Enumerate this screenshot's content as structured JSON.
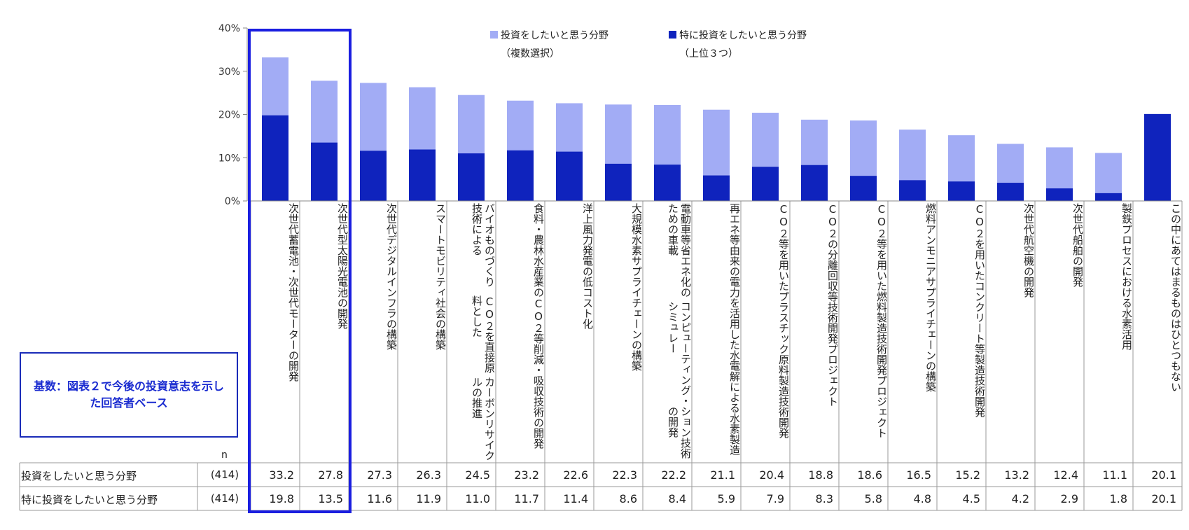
{
  "chart_data": {
    "type": "bar",
    "categories": [
      [
        "次世代蓄電池・",
        "次世代モーターの開発"
      ],
      [
        "次世代型太陽光電池の開発"
      ],
      [
        "次世代デジタルインフラの構築"
      ],
      [
        "スマートモビリティ社会の構築"
      ],
      [
        "バイオものづくり技術による",
        "CO２を直接原料とした",
        "カーボンリサイクルの推進"
      ],
      [
        "食料・農林水産業の",
        "CO２等削減・吸収技術の開発"
      ],
      [
        "洋上風力発電の低コスト化"
      ],
      [
        "大規模水素サプライチェーンの",
        "構築"
      ],
      [
        "電動車等省エネ化のための車載",
        "コンピューティング・シミュレー",
        "ション技術の開発"
      ],
      [
        "再エネ等由来の電力を活用した",
        "水電解による水素製造"
      ],
      [
        "CO２等を用いた",
        "プラスチック原料製造技術開発"
      ],
      [
        "CO２の分離回収等",
        "技術開発プロジェクト"
      ],
      [
        "CO２等を用いた",
        "燃料製造技術開発プロジェクト"
      ],
      [
        "燃料アンモニアサプライチェーンの",
        "構築"
      ],
      [
        "CO２を用いた",
        "コンクリート等製造技術開発"
      ],
      [
        "次世代航空機の開発"
      ],
      [
        "次世代船舶の開発"
      ],
      [
        "製鉄プロセスにおける水素活用"
      ],
      [
        "この中にあてはまるものは",
        "ひとつもない"
      ]
    ],
    "series": [
      {
        "name": "投資をしたいと思う分野",
        "legend_note": "（複数選択）",
        "color": "#a2acf5",
        "n": "(414)",
        "values": [
          33.2,
          27.8,
          27.3,
          26.3,
          24.5,
          23.2,
          22.6,
          22.3,
          22.2,
          21.1,
          20.4,
          18.8,
          18.6,
          16.5,
          15.2,
          13.2,
          12.4,
          11.1,
          20.1
        ]
      },
      {
        "name": "特に投資をしたいと思う分野",
        "legend_note": "（上位３つ）",
        "color": "#0f23bd",
        "n": "(414)",
        "values": [
          19.8,
          13.5,
          11.6,
          11.9,
          11.0,
          11.7,
          11.4,
          8.6,
          8.4,
          5.9,
          7.9,
          8.3,
          5.8,
          4.8,
          4.5,
          4.2,
          2.9,
          1.8,
          20.1
        ]
      }
    ],
    "y_ticks": [
      "0%",
      "10%",
      "20%",
      "30%",
      "40%"
    ],
    "ylim": [
      0,
      40
    ],
    "n_header": "n",
    "base_note": "基数：図表２で今後の投資意志を示した回答者ベース",
    "highlight_range": [
      0,
      1
    ],
    "highlight_color": "#1a1ee0",
    "legend_position": "top"
  }
}
